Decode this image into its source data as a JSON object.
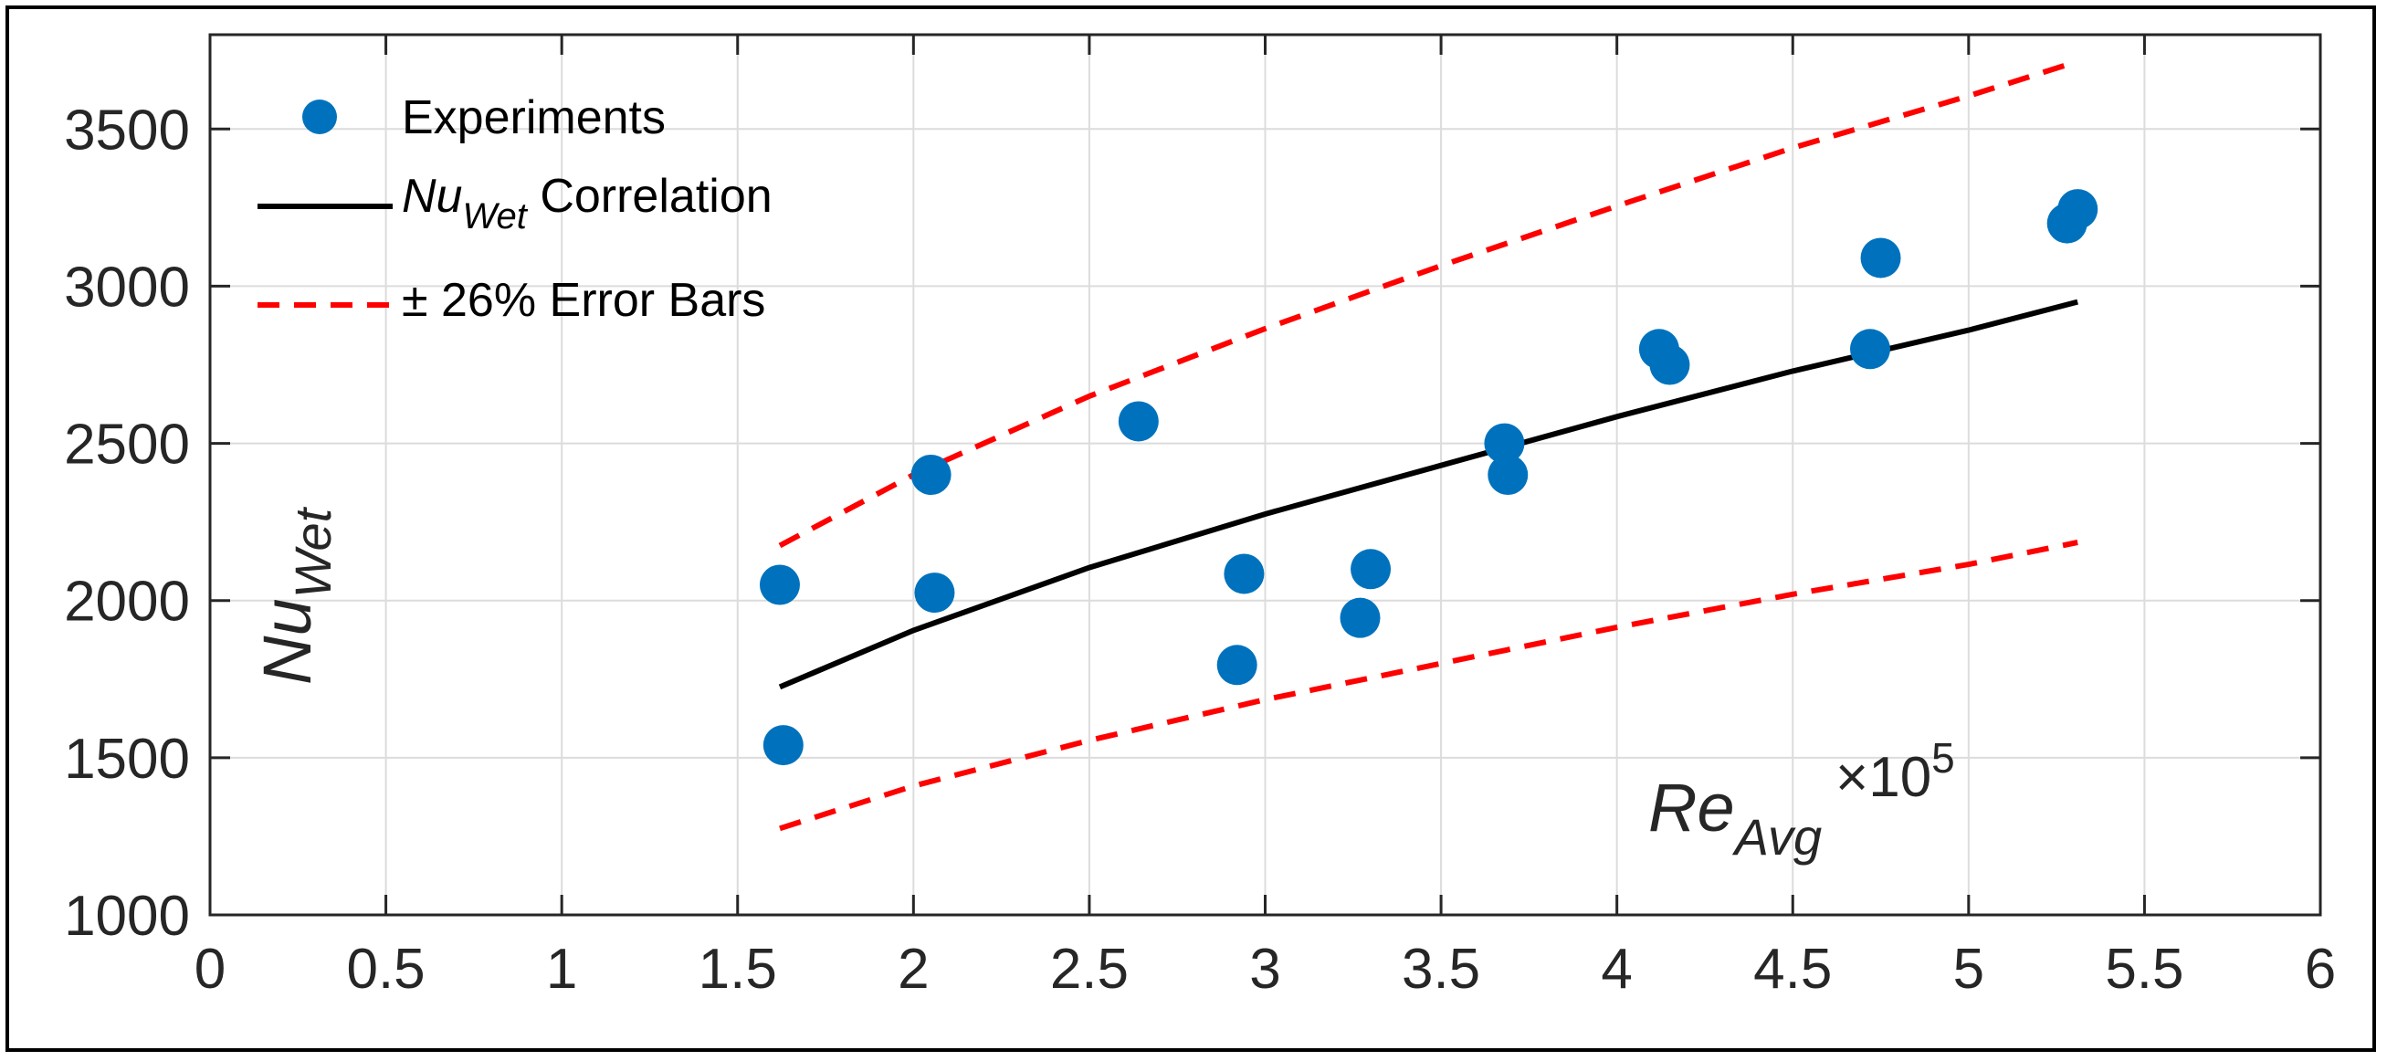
{
  "chart_data": {
    "type": "scatter",
    "title": "",
    "xlabel": {
      "main": "Re",
      "sub": "Avg"
    },
    "ylabel": {
      "main": "Nu",
      "sub": "Wet"
    },
    "x_exponent": {
      "base": "×10",
      "power": "5"
    },
    "xlim": [
      0,
      6
    ],
    "ylim": [
      1000,
      3800
    ],
    "x_ticks": [
      0,
      0.5,
      1,
      1.5,
      2,
      2.5,
      3,
      3.5,
      4,
      4.5,
      5,
      5.5,
      6
    ],
    "x_tick_labels": [
      "0",
      "0.5",
      "1",
      "1.5",
      "2",
      "2.5",
      "3",
      "3.5",
      "4",
      "4.5",
      "5",
      "5.5",
      "6"
    ],
    "y_ticks": [
      1000,
      1500,
      2000,
      2500,
      3000,
      3500
    ],
    "y_tick_labels": [
      "1000",
      "1500",
      "2000",
      "2500",
      "3000",
      "3500"
    ],
    "grid": true,
    "legend_position": "top-left",
    "colors": {
      "experiments": "#0072BD",
      "correlation": "#000000",
      "error_bars": "#FF0000"
    },
    "series": [
      {
        "name": "Experiments",
        "kind": "points",
        "x": [
          1.62,
          1.63,
          2.05,
          2.06,
          2.64,
          2.92,
          2.94,
          3.27,
          3.3,
          3.68,
          3.69,
          4.12,
          4.15,
          4.72,
          4.75,
          5.28,
          5.31
        ],
        "y": [
          2050,
          1540,
          2400,
          2025,
          2570,
          1795,
          2085,
          1945,
          2100,
          2500,
          2400,
          2800,
          2750,
          2800,
          3090,
          3200,
          3245
        ]
      },
      {
        "name": "Correlation",
        "legend_main": "Nu",
        "legend_sub": "Wet",
        "legend_rest": " Correlation",
        "kind": "line",
        "x": [
          1.62,
          2.0,
          2.5,
          3.0,
          3.5,
          4.0,
          4.5,
          5.0,
          5.31
        ],
        "y": [
          1725,
          1905,
          2105,
          2275,
          2430,
          2585,
          2730,
          2860,
          2950
        ]
      },
      {
        "name": "± 26% Error Bars",
        "kind": "dashed",
        "x": [
          1.62,
          2.0,
          2.5,
          3.0,
          3.5,
          4.0,
          4.5,
          5.0,
          5.31
        ],
        "y": [
          2175,
          2400,
          2650,
          2865,
          3065,
          3255,
          3440,
          3605,
          3715
        ]
      },
      {
        "name": "± 26% Error Bars (lower)",
        "kind": "dashed",
        "legend": false,
        "x": [
          1.62,
          2.0,
          2.5,
          3.0,
          3.5,
          4.0,
          4.5,
          5.0,
          5.31
        ],
        "y": [
          1275,
          1410,
          1555,
          1685,
          1800,
          1915,
          2020,
          2115,
          2185
        ]
      }
    ]
  }
}
